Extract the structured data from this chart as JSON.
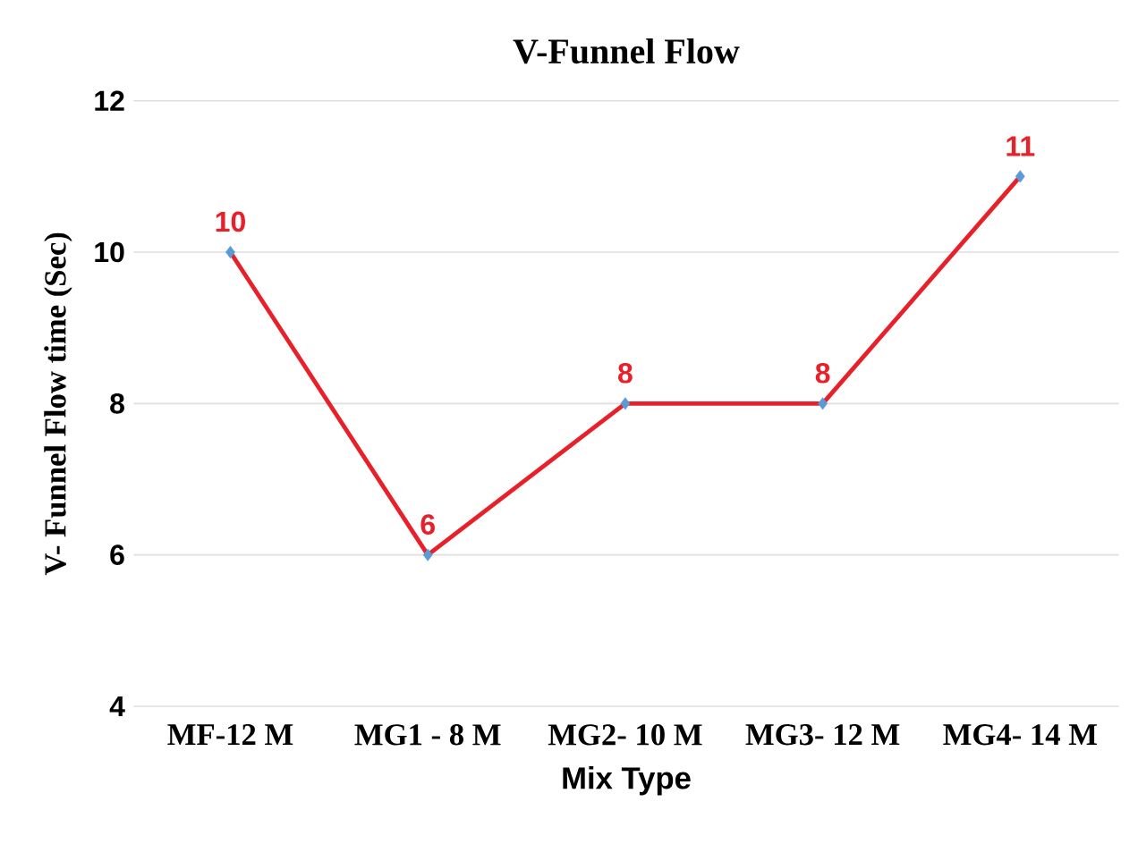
{
  "chart_data": {
    "type": "line",
    "title": "V-Funnel Flow",
    "xlabel": "Mix Type",
    "ylabel": "V- Funnel Flow  time (Sec)",
    "categories": [
      "MF-12 M",
      "MG1 - 8 M",
      "MG2- 10 M",
      "MG3- 12 M",
      "MG4- 14 M"
    ],
    "series": [
      {
        "color": "#e8202a",
        "values": [
          10,
          6,
          8,
          8,
          11
        ]
      }
    ],
    "ylim": [
      4,
      12
    ],
    "yticks": [
      4,
      6,
      8,
      10,
      12
    ],
    "grid": "y",
    "marker": "diamond",
    "line_style": "solid",
    "data_labels": true
  }
}
